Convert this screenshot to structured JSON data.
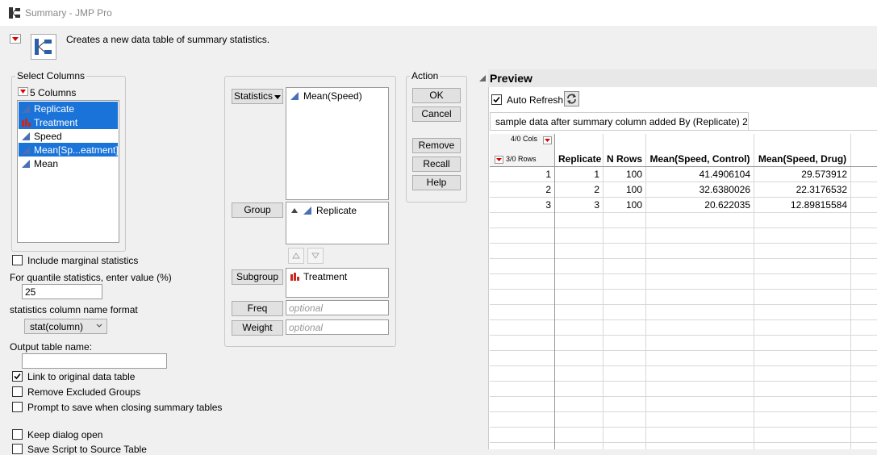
{
  "window": {
    "title": "Summary - JMP Pro"
  },
  "header": {
    "description": "Creates a new data table of summary statistics."
  },
  "select_columns": {
    "title": "Select Columns",
    "count": "5 Columns",
    "columns": [
      {
        "name": "Replicate",
        "kind": "continuous",
        "selected": true
      },
      {
        "name": "Treatment",
        "kind": "nominal",
        "selected": true
      },
      {
        "name": "Speed",
        "kind": "continuous",
        "selected": false
      },
      {
        "name": "Mean[Sp...eatment]",
        "kind": "continuous",
        "selected": true
      },
      {
        "name": "Mean",
        "kind": "continuous",
        "selected": false
      }
    ]
  },
  "options": {
    "include_marginal": {
      "label": "Include marginal statistics",
      "checked": false
    },
    "quantile_label": "For quantile statistics, enter value (%)",
    "quantile_value": "25",
    "name_format_label": "statistics column name format",
    "name_format_value": "stat(column)",
    "output_label": "Output table name:",
    "checkboxes": [
      {
        "label": "Link to original data table",
        "checked": true
      },
      {
        "label": "Remove Excluded Groups",
        "checked": false
      },
      {
        "label": "Prompt to save when closing summary tables",
        "checked": false
      },
      {
        "label": "Keep dialog open",
        "checked": false
      },
      {
        "label": "Save Script to Source Table",
        "checked": false
      }
    ]
  },
  "roles": {
    "statistics": {
      "button": "Statistics",
      "items": [
        {
          "name": "Mean(Speed)",
          "kind": "continuous"
        }
      ]
    },
    "group": {
      "button": "Group",
      "items": [
        {
          "name": "Replicate",
          "kind": "continuous"
        }
      ]
    },
    "subgroup": {
      "button": "Subgroup",
      "items": [
        {
          "name": "Treatment",
          "kind": "nominal"
        }
      ]
    },
    "freq": {
      "button": "Freq",
      "placeholder": "optional"
    },
    "weight": {
      "button": "Weight",
      "placeholder": "optional"
    }
  },
  "action": {
    "title": "Action",
    "buttons": [
      "OK",
      "Cancel",
      "Remove",
      "Recall",
      "Help"
    ]
  },
  "preview": {
    "title": "Preview",
    "auto_refresh": {
      "label": "Auto Refresh",
      "checked": true
    },
    "tab": "sample data after summary column added By (Replicate) 2",
    "cols_info": "4/0 Cols",
    "rows_info": "3/0 Rows",
    "table": {
      "columns": [
        "Replicate",
        "N Rows",
        "Mean(Speed, Control)",
        "Mean(Speed, Drug)"
      ],
      "rows": [
        {
          "index": "1",
          "cells": [
            "1",
            "100",
            "41.4906104",
            "29.573912"
          ]
        },
        {
          "index": "2",
          "cells": [
            "2",
            "100",
            "32.6380026",
            "22.3176532"
          ]
        },
        {
          "index": "3",
          "cells": [
            "3",
            "100",
            "20.622035",
            "12.89815584"
          ]
        }
      ]
    }
  }
}
